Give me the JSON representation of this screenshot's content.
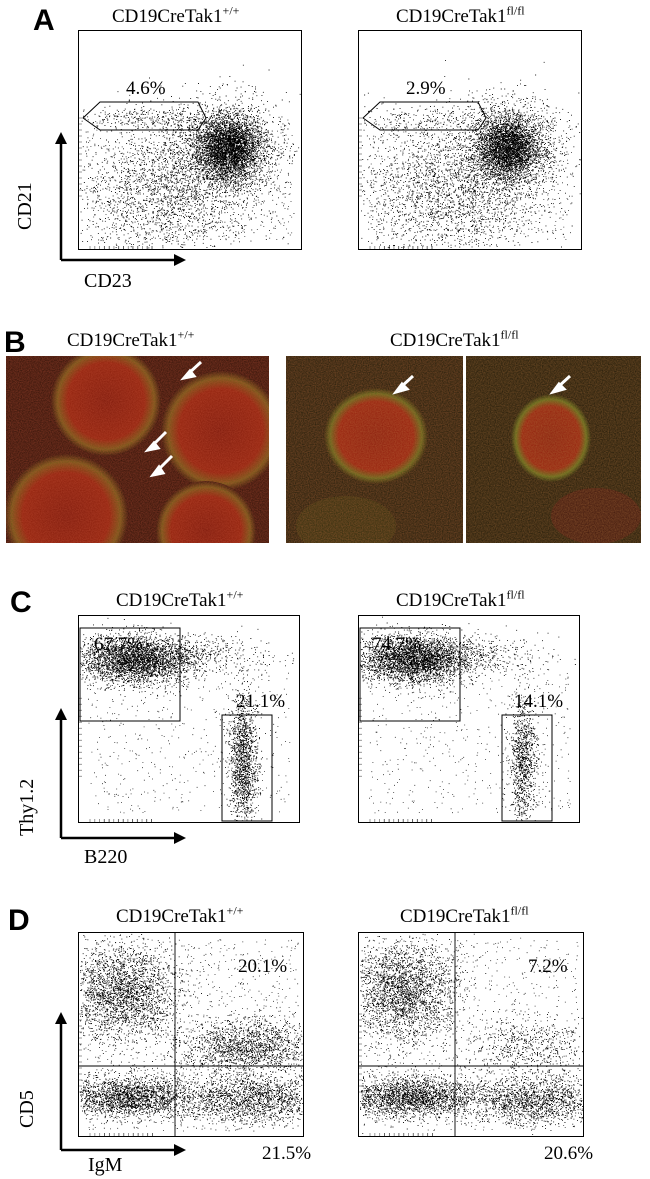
{
  "panels": [
    {
      "letter": "A",
      "genotypes": [
        {
          "base": "CD19CreTak1",
          "sup": "+/+"
        },
        {
          "base": "CD19CreTak1",
          "sup": "fl/fl"
        }
      ],
      "percentages": [
        "4.6%",
        "2.9%"
      ],
      "y_axis_label": "CD21",
      "x_axis_label": "CD23"
    },
    {
      "letter": "B",
      "genotypes": [
        {
          "base": "CD19CreTak1",
          "sup": "+/+"
        },
        {
          "base": "CD19CreTak1",
          "sup": "fl/fl"
        }
      ],
      "image_count": 3
    },
    {
      "letter": "C",
      "genotypes": [
        {
          "base": "CD19CreTak1",
          "sup": "+/+"
        },
        {
          "base": "CD19CreTak1",
          "sup": "fl/fl"
        }
      ],
      "percentages": [
        {
          "upper": "67.7%",
          "lower": "21.1%"
        },
        {
          "upper": "74.7%",
          "lower": "14.1%"
        }
      ],
      "y_axis_label": "Thy1.2",
      "x_axis_label": "B220"
    },
    {
      "letter": "D",
      "genotypes": [
        {
          "base": "CD19CreTak1",
          "sup": "+/+"
        },
        {
          "base": "CD19CreTak1",
          "sup": "fl/fl"
        }
      ],
      "percentages": [
        {
          "upper_right": "20.1%",
          "lower_right": "21.5%"
        },
        {
          "upper_right": "7.2%",
          "lower_right": "20.6%"
        }
      ],
      "y_axis_label": "CD5",
      "x_axis_label": "IgM"
    }
  ],
  "colors": {
    "text": "#000000",
    "microscopy_red": "#8a1a0c",
    "microscopy_green": "#3a8a2a",
    "arrow": "#ffffff"
  }
}
